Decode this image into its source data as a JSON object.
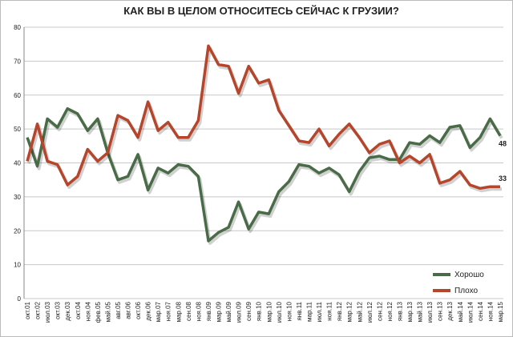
{
  "chart_data": {
    "type": "line",
    "title": "КАК ВЫ В ЦЕЛОМ ОТНОСИТЕСЬ СЕЙЧАС К ГРУЗИИ?",
    "categories": [
      "окт.01",
      "окт.02",
      "июл.03",
      "окт.03",
      "дек.03",
      "окт.04",
      "ноя.04",
      "фев.05",
      "май.05",
      "авг.05",
      "авг.06",
      "окт.06",
      "дек.06",
      "мар.07",
      "ноя.07",
      "мар.08",
      "сен.08",
      "ноя.08",
      "янв.09",
      "мар.09",
      "май.09",
      "июл.09",
      "сен.09",
      "янв.10",
      "мар.10",
      "июл.10",
      "ноя.10",
      "янв.11",
      "мар.11",
      "июл.11",
      "ноя.11",
      "янв.12",
      "мар.12",
      "май.12",
      "июл.12",
      "сен.12",
      "ноя.12",
      "янв.13",
      "мар.13",
      "май.13",
      "июл.13",
      "сен.13",
      "дек.13",
      "май.14",
      "июл.14",
      "сен.14",
      "ноя.14",
      "мар.15"
    ],
    "series": [
      {
        "name": "Хорошо",
        "color": "#4a6b47",
        "values": [
          47.5,
          39,
          53,
          50.5,
          56,
          54.5,
          49.5,
          53,
          43,
          35,
          36,
          42.5,
          32,
          38.5,
          37,
          39.5,
          39,
          36,
          17,
          19.5,
          21,
          28.5,
          20.5,
          25.5,
          25,
          31.5,
          34.5,
          39.5,
          39,
          37,
          38.5,
          36.5,
          31.5,
          37.5,
          41.5,
          42,
          41,
          41,
          46,
          45.5,
          48,
          46,
          50.5,
          51,
          44.5,
          47.5,
          53,
          48
        ]
      },
      {
        "name": "Плохо",
        "color": "#b5452b",
        "values": [
          40.5,
          51.5,
          40.5,
          39.5,
          33.5,
          36,
          44,
          40.5,
          43,
          54,
          52.5,
          47.5,
          58,
          49.5,
          52,
          47.5,
          47.5,
          52.5,
          74.5,
          69,
          68.5,
          60.5,
          68.5,
          63.5,
          64.5,
          55.5,
          51,
          46.5,
          46,
          50,
          45,
          48.5,
          51.5,
          47.5,
          43,
          45.5,
          46.5,
          40,
          42,
          40,
          42.5,
          34,
          35,
          37.5,
          33.5,
          32.5,
          33,
          33
        ]
      }
    ],
    "ylim": [
      0,
      80
    ],
    "yticks": [
      0,
      10,
      20,
      30,
      40,
      50,
      60,
      70,
      80
    ],
    "grid": true,
    "legend": "lower right"
  }
}
